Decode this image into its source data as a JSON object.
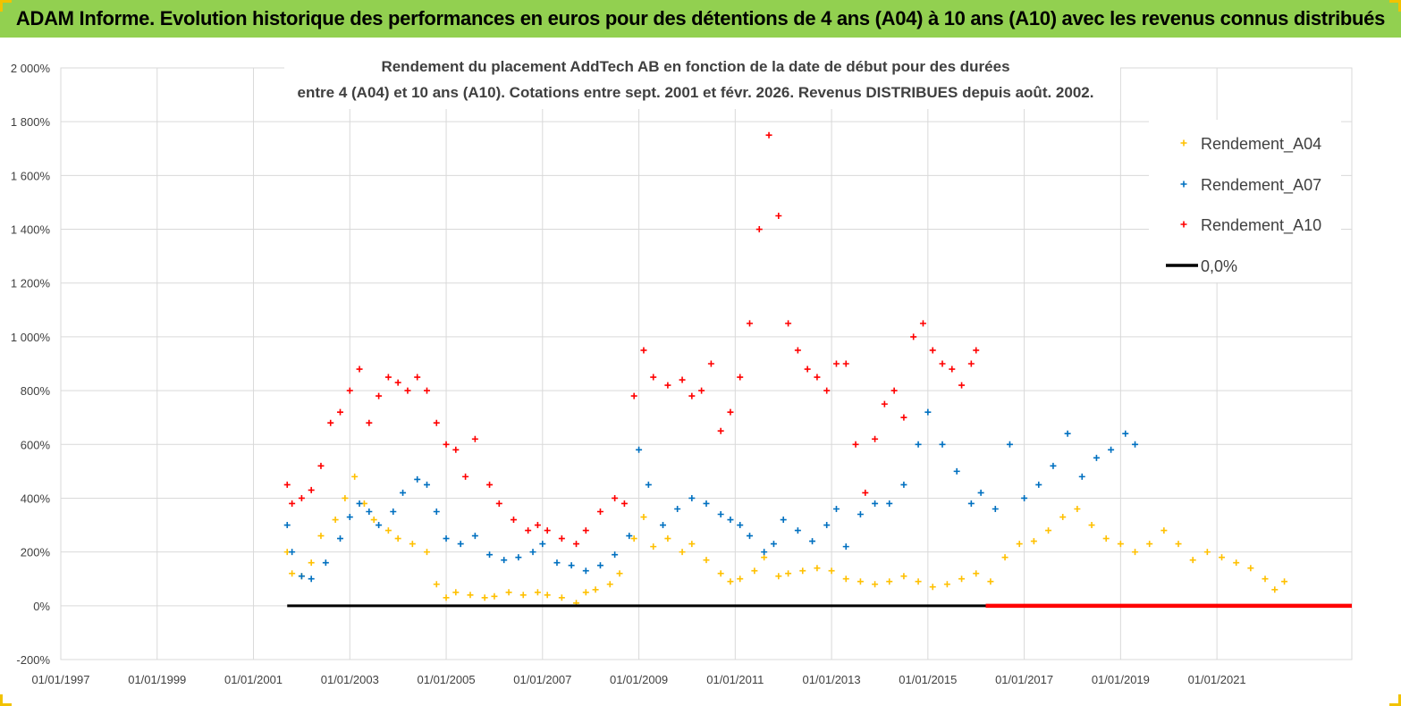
{
  "header": {
    "title": "ADAM Informe. Evolution historique des performances en euros pour des détentions de 4 ans (A04) à 10 ans (A10) avec les revenus connus distribués"
  },
  "colors": {
    "header_bg": "#92d050",
    "a04": "#ffc000",
    "a07": "#0070c0",
    "a10": "#ff0000",
    "zero": "#000000",
    "grid": "#d9d9d9"
  },
  "chart_data": {
    "type": "scatter",
    "title_lines": [
      "Rendement du placement AddTech AB en fonction de la date de début pour des durées",
      "entre 4 (A04) et 10 ans (A10). Cotations entre sept. 2001 et févr. 2026. Revenus DISTRIBUES depuis août. 2002."
    ],
    "ylim": [
      -200,
      2000
    ],
    "yticks": [
      -200,
      0,
      200,
      400,
      600,
      800,
      1000,
      1200,
      1400,
      1600,
      1800,
      2000
    ],
    "ytick_labels": [
      "-200%",
      "0%",
      "200%",
      "400%",
      "600%",
      "800%",
      "1 000%",
      "1 200%",
      "1 400%",
      "1 600%",
      "1 800%",
      "2 000%"
    ],
    "xlim": [
      1997.0,
      2023.8
    ],
    "xticks": [
      1997,
      1999,
      2001,
      2003,
      2005,
      2007,
      2009,
      2011,
      2013,
      2015,
      2017,
      2019,
      2021
    ],
    "xtick_labels": [
      "01/01/1997",
      "01/01/1999",
      "01/01/2001",
      "01/01/2003",
      "01/01/2005",
      "01/01/2007",
      "01/01/2009",
      "01/01/2011",
      "01/01/2013",
      "01/01/2015",
      "01/01/2017",
      "01/01/2019",
      "01/01/2021"
    ],
    "legend_position": "top-right",
    "series": [
      {
        "name": "Rendement_A04",
        "kind": "markers",
        "x": [
          2001.7,
          2001.8,
          2002.0,
          2002.2,
          2002.4,
          2002.7,
          2002.9,
          2003.1,
          2003.3,
          2003.5,
          2003.8,
          2004.0,
          2004.3,
          2004.6,
          2004.8,
          2005.0,
          2005.2,
          2005.5,
          2005.8,
          2006.0,
          2006.3,
          2006.6,
          2006.9,
          2007.1,
          2007.4,
          2007.7,
          2007.9,
          2008.1,
          2008.4,
          2008.6,
          2008.9,
          2009.1,
          2009.3,
          2009.6,
          2009.9,
          2010.1,
          2010.4,
          2010.7,
          2010.9,
          2011.1,
          2011.4,
          2011.6,
          2011.9,
          2012.1,
          2012.4,
          2012.7,
          2013.0,
          2013.3,
          2013.6,
          2013.9,
          2014.2,
          2014.5,
          2014.8,
          2015.1,
          2015.4,
          2015.7,
          2016.0,
          2016.3,
          2016.6,
          2016.9,
          2017.2,
          2017.5,
          2017.8,
          2018.1,
          2018.4,
          2018.7,
          2019.0,
          2019.3,
          2019.6,
          2019.9,
          2020.2,
          2020.5,
          2020.8,
          2021.1,
          2021.4,
          2021.7,
          2022.0,
          2022.2,
          2022.4
        ],
        "y": [
          200,
          120,
          110,
          160,
          260,
          320,
          400,
          480,
          380,
          320,
          280,
          250,
          230,
          200,
          80,
          30,
          50,
          40,
          30,
          35,
          50,
          40,
          50,
          40,
          30,
          10,
          50,
          60,
          80,
          120,
          250,
          330,
          220,
          250,
          200,
          230,
          170,
          120,
          90,
          100,
          130,
          180,
          110,
          120,
          130,
          140,
          130,
          100,
          90,
          80,
          90,
          110,
          90,
          70,
          80,
          100,
          120,
          90,
          180,
          230,
          240,
          280,
          330,
          360,
          300,
          250,
          230,
          200,
          230,
          280,
          230,
          170,
          200,
          180,
          160,
          140,
          100,
          60,
          90
        ]
      },
      {
        "name": "Rendement_A07",
        "kind": "markers",
        "x": [
          2001.7,
          2001.8,
          2002.0,
          2002.2,
          2002.5,
          2002.8,
          2003.0,
          2003.2,
          2003.4,
          2003.6,
          2003.9,
          2004.1,
          2004.4,
          2004.6,
          2004.8,
          2005.0,
          2005.3,
          2005.6,
          2005.9,
          2006.2,
          2006.5,
          2006.8,
          2007.0,
          2007.3,
          2007.6,
          2007.9,
          2008.2,
          2008.5,
          2008.8,
          2009.0,
          2009.2,
          2009.5,
          2009.8,
          2010.1,
          2010.4,
          2010.7,
          2010.9,
          2011.1,
          2011.3,
          2011.6,
          2011.8,
          2012.0,
          2012.3,
          2012.6,
          2012.9,
          2013.1,
          2013.3,
          2013.6,
          2013.9,
          2014.2,
          2014.5,
          2014.8,
          2015.0,
          2015.3,
          2015.6,
          2015.9,
          2016.1,
          2016.4,
          2016.7,
          2017.0,
          2017.3,
          2017.6,
          2017.9,
          2018.2,
          2018.5,
          2018.8,
          2019.1,
          2019.3
        ],
        "y": [
          300,
          200,
          110,
          100,
          160,
          250,
          330,
          380,
          350,
          300,
          350,
          420,
          470,
          450,
          350,
          250,
          230,
          260,
          190,
          170,
          180,
          200,
          230,
          160,
          150,
          130,
          150,
          190,
          260,
          580,
          450,
          300,
          360,
          400,
          380,
          340,
          320,
          300,
          260,
          200,
          230,
          320,
          280,
          240,
          300,
          360,
          220,
          340,
          380,
          380,
          450,
          600,
          720,
          600,
          500,
          380,
          420,
          360,
          600,
          400,
          450,
          520,
          640,
          480,
          550,
          580,
          640,
          600
        ]
      },
      {
        "name": "Rendement_A10",
        "kind": "markers",
        "x": [
          2001.7,
          2001.8,
          2002.0,
          2002.2,
          2002.4,
          2002.6,
          2002.8,
          2003.0,
          2003.2,
          2003.4,
          2003.6,
          2003.8,
          2004.0,
          2004.2,
          2004.4,
          2004.6,
          2004.8,
          2005.0,
          2005.2,
          2005.4,
          2005.6,
          2005.9,
          2006.1,
          2006.4,
          2006.7,
          2006.9,
          2007.1,
          2007.4,
          2007.7,
          2007.9,
          2008.2,
          2008.5,
          2008.7,
          2008.9,
          2009.1,
          2009.3,
          2009.6,
          2009.9,
          2010.1,
          2010.3,
          2010.5,
          2010.7,
          2010.9,
          2011.1,
          2011.3,
          2011.5,
          2011.7,
          2011.9,
          2012.1,
          2012.3,
          2012.5,
          2012.7,
          2012.9,
          2013.1,
          2013.3,
          2013.5,
          2013.7,
          2013.9,
          2014.1,
          2014.3,
          2014.5,
          2014.7,
          2014.9,
          2015.1,
          2015.3,
          2015.5,
          2015.7,
          2015.9,
          2016.0
        ],
        "y": [
          450,
          380,
          400,
          430,
          520,
          680,
          720,
          800,
          880,
          680,
          780,
          850,
          830,
          800,
          850,
          800,
          680,
          600,
          580,
          480,
          620,
          450,
          380,
          320,
          280,
          300,
          280,
          250,
          230,
          280,
          350,
          400,
          380,
          780,
          950,
          850,
          820,
          840,
          780,
          800,
          900,
          650,
          720,
          850,
          1050,
          1400,
          1750,
          1450,
          1050,
          950,
          880,
          850,
          800,
          900,
          900,
          600,
          420,
          620,
          750,
          800,
          700,
          1000,
          1050,
          950,
          900,
          880,
          820,
          900,
          950
        ]
      },
      {
        "name": "Rendement_A10",
        "kind": "zero-run",
        "x": [
          2016.2,
          2023.8
        ],
        "y": [
          0,
          0
        ]
      },
      {
        "name": "0,0%",
        "kind": "line",
        "x": [
          2001.7,
          2016.2
        ],
        "y": [
          0,
          0
        ]
      }
    ]
  }
}
